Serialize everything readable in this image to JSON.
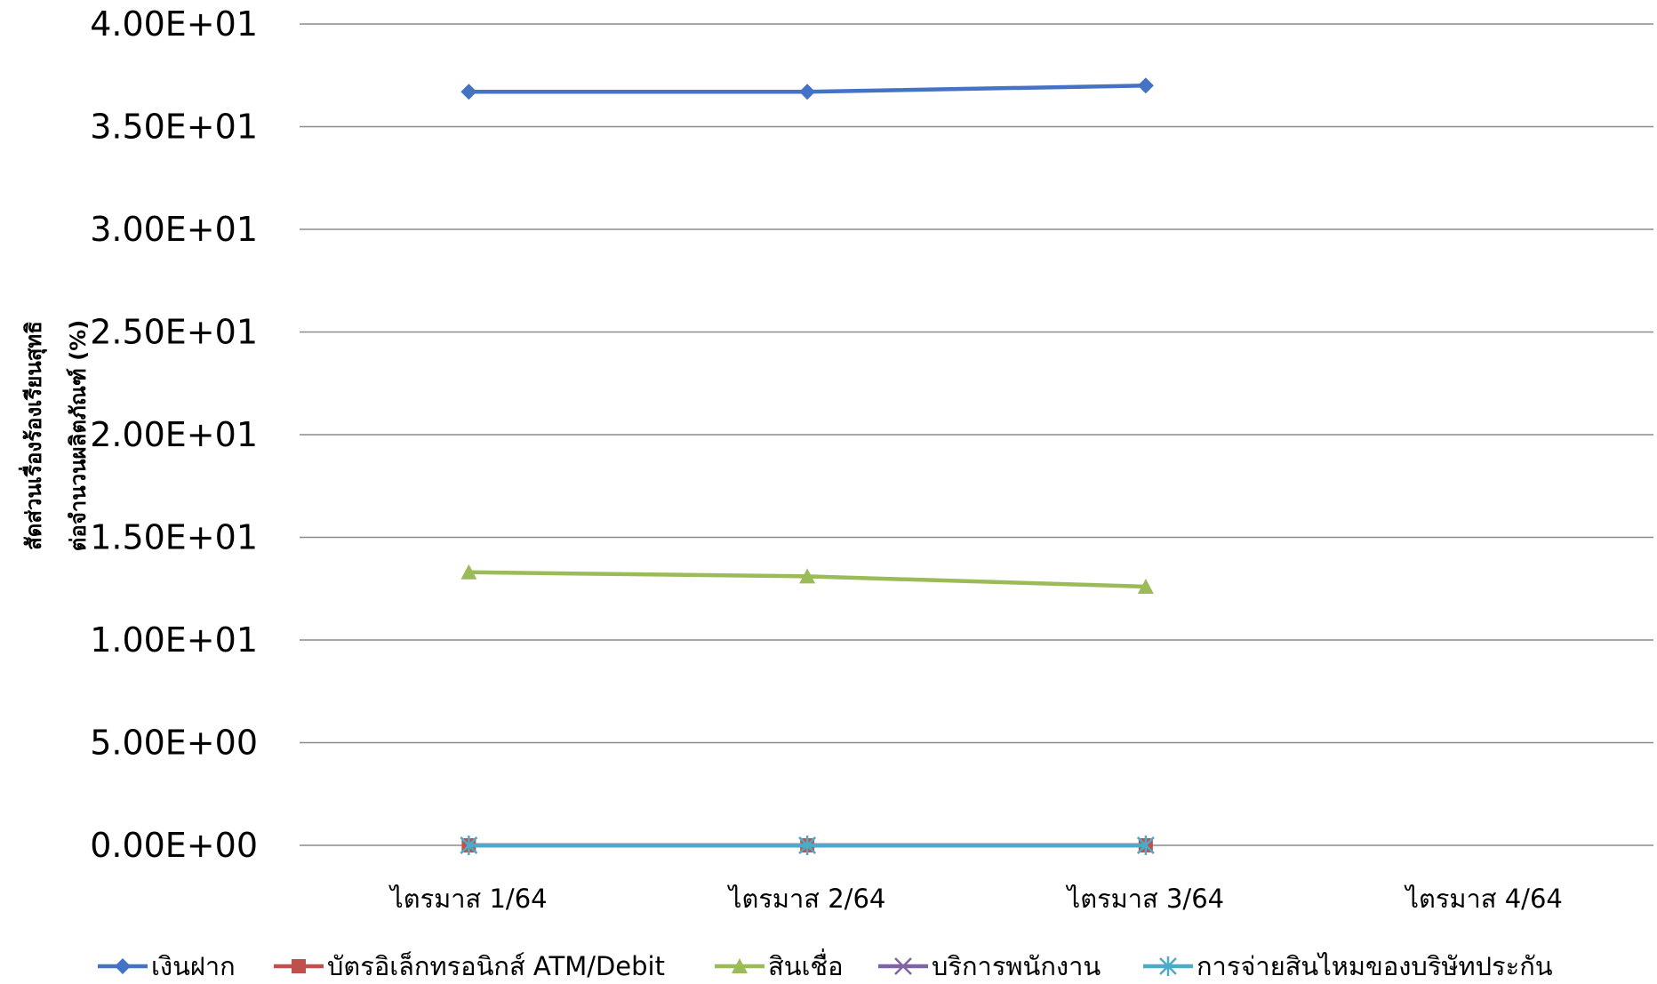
{
  "chart_data": {
    "type": "line",
    "ylabel_lines": [
      "สัดส่วนเรื่องร้องเรียนสุทธิ",
      "ต่อจำนวนผลิตภัณฑ์ (%)"
    ],
    "categories": [
      "ไตรมาส 1/64",
      "ไตรมาส 2/64",
      "ไตรมาส 3/64",
      "ไตรมาส 4/64"
    ],
    "ylim": [
      0,
      40
    ],
    "yticks": [
      0,
      5,
      10,
      15,
      20,
      25,
      30,
      35,
      40
    ],
    "ytick_labels": [
      "0.00E+00",
      "5.00E+00",
      "1.00E+01",
      "1.50E+01",
      "2.00E+01",
      "2.50E+01",
      "3.00E+01",
      "3.50E+01",
      "4.00E+01"
    ],
    "grid": true,
    "legend_position": "bottom",
    "series": [
      {
        "name": "เงินฝาก",
        "values": [
          36.7,
          36.7,
          37.0,
          null
        ],
        "color": "#4472C4",
        "marker": "diamond"
      },
      {
        "name": "บัตรอิเล็กทรอนิกส์ ATM/Debit",
        "values": [
          0,
          0,
          0,
          null
        ],
        "color": "#C0504D",
        "marker": "square"
      },
      {
        "name": "สินเชื่อ",
        "values": [
          13.3,
          13.1,
          12.6,
          null
        ],
        "color": "#9BBB59",
        "marker": "triangle"
      },
      {
        "name": "บริการพนักงาน",
        "values": [
          0,
          0,
          0,
          null
        ],
        "color": "#8064A2",
        "marker": "x"
      },
      {
        "name": "การจ่ายสินไหมของบริษัทประกัน",
        "values": [
          0,
          0,
          0,
          null
        ],
        "color": "#4BACC6",
        "marker": "star"
      }
    ]
  }
}
